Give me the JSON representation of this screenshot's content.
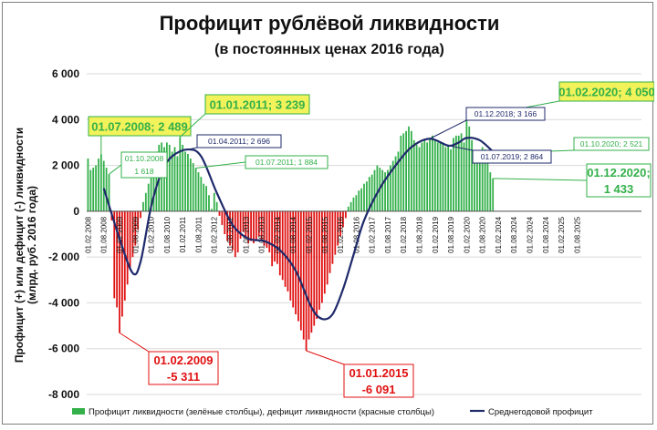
{
  "chart_data": {
    "type": "bar",
    "title": "Профицит рублёвой ликвидности",
    "subtitle": "(в постоянных ценах 2016 года)",
    "ylabel_line1": "Профицит (+) или дефицит (-) ликвидности",
    "ylabel_line2": "(млрд. руб. 2016 года)",
    "ylim": [
      -8000,
      6000
    ],
    "yticks": [
      {
        "value": 6000,
        "label": "6 000"
      },
      {
        "value": 4000,
        "label": "4 000"
      },
      {
        "value": 2000,
        "label": "2 000"
      },
      {
        "value": 0,
        "label": "0"
      },
      {
        "value": -2000,
        "label": "-2 000"
      },
      {
        "value": -4000,
        "label": "-4 000"
      },
      {
        "value": -6000,
        "label": "-6 000"
      },
      {
        "value": -8000,
        "label": "-8 000"
      }
    ],
    "x_start": "2008-02",
    "x_end": "2025-08",
    "xtick_labels": [
      "01.02.2008",
      "01.08.2008",
      "01.02.2009",
      "01.08.2009",
      "01.02.2010",
      "01.08.2010",
      "01.02.2011",
      "01.08.2011",
      "01.02.2012",
      "01.08.2012",
      "01.02.2013",
      "01.08.2013",
      "01.02.2014",
      "01.08.2014",
      "01.02.2015",
      "01.08.2015",
      "01.02.2016",
      "01.08.2016",
      "01.02.2017",
      "01.08.2017",
      "01.02.2018",
      "01.08.2018",
      "01.02.2019",
      "01.08.2019",
      "01.02.2020",
      "01.08.2020",
      "01.02.2024",
      "01.08.2024",
      "01.02.2024",
      "01.08.2024",
      "01.02.2025",
      "01.08.2025"
    ],
    "bars": [
      {
        "month": "2008-02",
        "value": 2300
      },
      {
        "month": "2008-03",
        "value": 1800
      },
      {
        "month": "2008-04",
        "value": 1900
      },
      {
        "month": "2008-05",
        "value": 2000
      },
      {
        "month": "2008-06",
        "value": 2300
      },
      {
        "month": "2008-07",
        "value": 2489
      },
      {
        "month": "2008-08",
        "value": 2200
      },
      {
        "month": "2008-09",
        "value": 1900
      },
      {
        "month": "2008-10",
        "value": 1618
      },
      {
        "month": "2008-11",
        "value": -400
      },
      {
        "month": "2008-12",
        "value": -3800
      },
      {
        "month": "2009-01",
        "value": -4200
      },
      {
        "month": "2009-02",
        "value": -5311
      },
      {
        "month": "2009-03",
        "value": -4600
      },
      {
        "month": "2009-04",
        "value": -3900
      },
      {
        "month": "2009-05",
        "value": -3200
      },
      {
        "month": "2009-06",
        "value": -2500
      },
      {
        "month": "2009-07",
        "value": -2000
      },
      {
        "month": "2009-08",
        "value": -1500
      },
      {
        "month": "2009-09",
        "value": -800
      },
      {
        "month": "2009-10",
        "value": -300
      },
      {
        "month": "2009-11",
        "value": 400
      },
      {
        "month": "2009-12",
        "value": 800
      },
      {
        "month": "2010-01",
        "value": 1200
      },
      {
        "month": "2010-02",
        "value": 1800
      },
      {
        "month": "2010-03",
        "value": 2300
      },
      {
        "month": "2010-04",
        "value": 2600
      },
      {
        "month": "2010-05",
        "value": 2900
      },
      {
        "month": "2010-06",
        "value": 3000
      },
      {
        "month": "2010-07",
        "value": 2800
      },
      {
        "month": "2010-08",
        "value": 3000
      },
      {
        "month": "2010-09",
        "value": 2900
      },
      {
        "month": "2010-10",
        "value": 2600
      },
      {
        "month": "2010-11",
        "value": 2800
      },
      {
        "month": "2010-12",
        "value": 2400
      },
      {
        "month": "2011-01",
        "value": 3239
      },
      {
        "month": "2011-02",
        "value": 2900
      },
      {
        "month": "2011-03",
        "value": 2600
      },
      {
        "month": "2011-04",
        "value": 2500
      },
      {
        "month": "2011-05",
        "value": 2300
      },
      {
        "month": "2011-06",
        "value": 2100
      },
      {
        "month": "2011-07",
        "value": 1884
      },
      {
        "month": "2011-08",
        "value": 1700
      },
      {
        "month": "2011-09",
        "value": 1500
      },
      {
        "month": "2011-10",
        "value": 1200
      },
      {
        "month": "2011-11",
        "value": 1100
      },
      {
        "month": "2011-12",
        "value": 700
      },
      {
        "month": "2012-01",
        "value": 100
      },
      {
        "month": "2012-02",
        "value": 800
      },
      {
        "month": "2012-03",
        "value": 400
      },
      {
        "month": "2012-04",
        "value": -200
      },
      {
        "month": "2012-05",
        "value": -600
      },
      {
        "month": "2012-06",
        "value": -1000
      },
      {
        "month": "2012-07",
        "value": -1300
      },
      {
        "month": "2012-08",
        "value": -1500
      },
      {
        "month": "2012-09",
        "value": -1700
      },
      {
        "month": "2012-10",
        "value": -2000
      },
      {
        "month": "2012-11",
        "value": -1800
      },
      {
        "month": "2012-12",
        "value": -1200
      },
      {
        "month": "2013-01",
        "value": -900
      },
      {
        "month": "2013-02",
        "value": -1200
      },
      {
        "month": "2013-03",
        "value": -1400
      },
      {
        "month": "2013-04",
        "value": -1300
      },
      {
        "month": "2013-05",
        "value": -1400
      },
      {
        "month": "2013-06",
        "value": -1300
      },
      {
        "month": "2013-07",
        "value": -1100
      },
      {
        "month": "2013-08",
        "value": -1300
      },
      {
        "month": "2013-09",
        "value": -1500
      },
      {
        "month": "2013-10",
        "value": -1600
      },
      {
        "month": "2013-11",
        "value": -1800
      },
      {
        "month": "2013-12",
        "value": -2400
      },
      {
        "month": "2014-01",
        "value": -2200
      },
      {
        "month": "2014-02",
        "value": -2300
      },
      {
        "month": "2014-03",
        "value": -2800
      },
      {
        "month": "2014-04",
        "value": -3000
      },
      {
        "month": "2014-05",
        "value": -3300
      },
      {
        "month": "2014-06",
        "value": -3500
      },
      {
        "month": "2014-07",
        "value": -3900
      },
      {
        "month": "2014-08",
        "value": -4200
      },
      {
        "month": "2014-09",
        "value": -4500
      },
      {
        "month": "2014-10",
        "value": -4800
      },
      {
        "month": "2014-11",
        "value": -5200
      },
      {
        "month": "2014-12",
        "value": -5600
      },
      {
        "month": "2015-01",
        "value": -6091
      },
      {
        "month": "2015-02",
        "value": -5600
      },
      {
        "month": "2015-03",
        "value": -5300
      },
      {
        "month": "2015-04",
        "value": -5000
      },
      {
        "month": "2015-05",
        "value": -4700
      },
      {
        "month": "2015-06",
        "value": -4300
      },
      {
        "month": "2015-07",
        "value": -4000
      },
      {
        "month": "2015-08",
        "value": -3600
      },
      {
        "month": "2015-09",
        "value": -3200
      },
      {
        "month": "2015-10",
        "value": -2700
      },
      {
        "month": "2015-11",
        "value": -2300
      },
      {
        "month": "2015-12",
        "value": -1900
      },
      {
        "month": "2016-01",
        "value": -1500
      },
      {
        "month": "2016-02",
        "value": -1100
      },
      {
        "month": "2016-03",
        "value": -700
      },
      {
        "month": "2016-04",
        "value": -300
      },
      {
        "month": "2016-05",
        "value": 200
      },
      {
        "month": "2016-06",
        "value": 400
      },
      {
        "month": "2016-07",
        "value": 600
      },
      {
        "month": "2016-08",
        "value": 700
      },
      {
        "month": "2016-09",
        "value": 900
      },
      {
        "month": "2016-10",
        "value": 1000
      },
      {
        "month": "2016-11",
        "value": 1200
      },
      {
        "month": "2016-12",
        "value": 1300
      },
      {
        "month": "2017-01",
        "value": 1500
      },
      {
        "month": "2017-02",
        "value": 1600
      },
      {
        "month": "2017-03",
        "value": 1800
      },
      {
        "month": "2017-04",
        "value": 2000
      },
      {
        "month": "2017-05",
        "value": 1900
      },
      {
        "month": "2017-06",
        "value": 1800
      },
      {
        "month": "2017-07",
        "value": 1700
      },
      {
        "month": "2017-08",
        "value": 1800
      },
      {
        "month": "2017-09",
        "value": 2000
      },
      {
        "month": "2017-10",
        "value": 2200
      },
      {
        "month": "2017-11",
        "value": 2400
      },
      {
        "month": "2017-12",
        "value": 2600
      },
      {
        "month": "2018-01",
        "value": 3300
      },
      {
        "month": "2018-02",
        "value": 3400
      },
      {
        "month": "2018-03",
        "value": 3500
      },
      {
        "month": "2018-04",
        "value": 3700
      },
      {
        "month": "2018-05",
        "value": 3500
      },
      {
        "month": "2018-06",
        "value": 3100
      },
      {
        "month": "2018-07",
        "value": 2900
      },
      {
        "month": "2018-08",
        "value": 2800
      },
      {
        "month": "2018-09",
        "value": 3000
      },
      {
        "month": "2018-10",
        "value": 3100
      },
      {
        "month": "2018-11",
        "value": 3000
      },
      {
        "month": "2018-12",
        "value": 3166
      },
      {
        "month": "2019-01",
        "value": 3300
      },
      {
        "month": "2019-02",
        "value": 3100
      },
      {
        "month": "2019-03",
        "value": 3000
      },
      {
        "month": "2019-04",
        "value": 3000
      },
      {
        "month": "2019-05",
        "value": 3000
      },
      {
        "month": "2019-06",
        "value": 2800
      },
      {
        "month": "2019-07",
        "value": 2864
      },
      {
        "month": "2019-08",
        "value": 2700
      },
      {
        "month": "2019-09",
        "value": 3200
      },
      {
        "month": "2019-10",
        "value": 3300
      },
      {
        "month": "2019-11",
        "value": 3300
      },
      {
        "month": "2019-12",
        "value": 3400
      },
      {
        "month": "2020-01",
        "value": 3000
      },
      {
        "month": "2020-02",
        "value": 4050
      },
      {
        "month": "2020-03",
        "value": 3700
      },
      {
        "month": "2020-04",
        "value": 3100
      },
      {
        "month": "2020-05",
        "value": 2600
      },
      {
        "month": "2020-06",
        "value": 2400
      },
      {
        "month": "2020-07",
        "value": 2500
      },
      {
        "month": "2020-08",
        "value": 2800
      },
      {
        "month": "2020-09",
        "value": 2700
      },
      {
        "month": "2020-10",
        "value": 2521
      },
      {
        "month": "2020-11",
        "value": 1700
      },
      {
        "month": "2020-12",
        "value": 1433
      }
    ],
    "avg_line": [
      {
        "month": "2008-08",
        "value": 1000
      },
      {
        "month": "2009-02",
        "value": -1200
      },
      {
        "month": "2009-07",
        "value": -2700
      },
      {
        "month": "2009-10",
        "value": -2200
      },
      {
        "month": "2010-02",
        "value": 200
      },
      {
        "month": "2010-06",
        "value": 1700
      },
      {
        "month": "2010-10",
        "value": 2400
      },
      {
        "month": "2011-04",
        "value": 2696
      },
      {
        "month": "2011-09",
        "value": 2400
      },
      {
        "month": "2012-03",
        "value": 800
      },
      {
        "month": "2012-09",
        "value": -600
      },
      {
        "month": "2013-03",
        "value": -1200
      },
      {
        "month": "2013-09",
        "value": -1300
      },
      {
        "month": "2014-03",
        "value": -1700
      },
      {
        "month": "2014-09",
        "value": -2600
      },
      {
        "month": "2015-03",
        "value": -4200
      },
      {
        "month": "2015-07",
        "value": -4700
      },
      {
        "month": "2015-11",
        "value": -4500
      },
      {
        "month": "2016-03",
        "value": -3400
      },
      {
        "month": "2016-07",
        "value": -1900
      },
      {
        "month": "2016-11",
        "value": -400
      },
      {
        "month": "2017-05",
        "value": 1000
      },
      {
        "month": "2017-11",
        "value": 2000
      },
      {
        "month": "2018-05",
        "value": 2800
      },
      {
        "month": "2018-12",
        "value": 3166
      },
      {
        "month": "2019-07",
        "value": 2864
      },
      {
        "month": "2019-11",
        "value": 3000
      },
      {
        "month": "2020-02",
        "value": 3200
      },
      {
        "month": "2020-07",
        "value": 3100
      },
      {
        "month": "2020-12",
        "value": 2600
      }
    ],
    "annotations": [
      {
        "id": "jul2008",
        "lines": [
          "01.07.2008; 2 489"
        ],
        "style": "yellow",
        "month": "2008-07",
        "value": 2489
      },
      {
        "id": "jan2011",
        "lines": [
          "01.01.2011; 3 239"
        ],
        "style": "yellow",
        "month": "2011-01",
        "value": 3239
      },
      {
        "id": "feb2020",
        "lines": [
          "01.02.2020; 4 050"
        ],
        "style": "yellow",
        "month": "2020-02",
        "value": 4050
      },
      {
        "id": "oct2008",
        "lines": [
          "01.10.2008",
          "1 618"
        ],
        "style": "green",
        "month": "2008-10",
        "value": 1618
      },
      {
        "id": "jul2011",
        "lines": [
          "01.07.2011; 1 884"
        ],
        "style": "green",
        "month": "2011-07",
        "value": 1884
      },
      {
        "id": "oct2020",
        "lines": [
          "01.10.2020; 2 521"
        ],
        "style": "green",
        "month": "2020-10",
        "value": 2521
      },
      {
        "id": "dec2020",
        "lines": [
          "01.12.2020;",
          "1 433"
        ],
        "style": "green-big",
        "month": "2020-12",
        "value": 1433
      },
      {
        "id": "apr2011",
        "lines": [
          "01.04.2011; 2 696"
        ],
        "style": "navy",
        "month": "2011-04",
        "value": 2696
      },
      {
        "id": "dec2018",
        "lines": [
          "01.12.2018; 3 166"
        ],
        "style": "navy",
        "month": "2018-12",
        "value": 3166
      },
      {
        "id": "jul2019",
        "lines": [
          "01.07.2019; 2 864"
        ],
        "style": "navy",
        "month": "2019-07",
        "value": 2864
      },
      {
        "id": "feb2009",
        "lines": [
          "01.02.2009",
          "-5 311"
        ],
        "style": "red",
        "month": "2009-02",
        "value": -5311
      },
      {
        "id": "jan2015",
        "lines": [
          "01.01.2015",
          "-6 091"
        ],
        "style": "red",
        "month": "2015-01",
        "value": -6091
      }
    ],
    "legend": [
      {
        "label": "Профицит ликвидности (зелёные столбцы), дефицит ликвидности (красные столбцы)",
        "color": "#33b04a",
        "kind": "bar"
      },
      {
        "label": "Среднегодовой профицит",
        "color": "#1f2a6b",
        "kind": "line"
      }
    ],
    "legend_position": "bottom",
    "colors": {
      "positive": "#33b04a",
      "negative": "#e01010",
      "avg_line": "#1f2a6b",
      "grid": "#d9d9d9",
      "yellow_fill": "#f2f25a"
    },
    "grid": true
  }
}
